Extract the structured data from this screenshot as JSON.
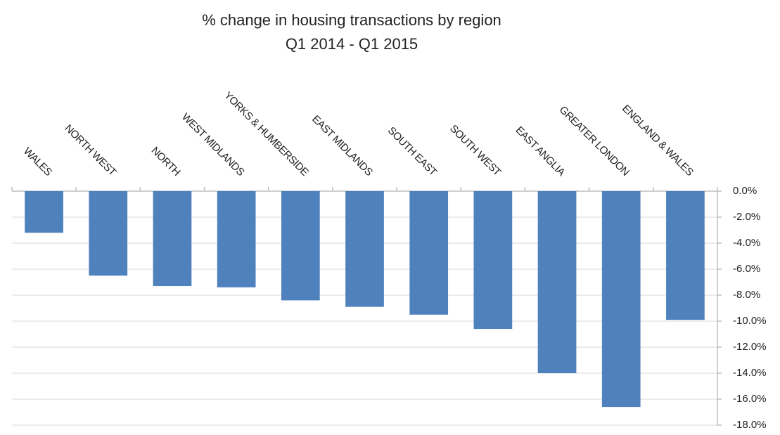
{
  "chart_data": {
    "type": "bar",
    "title": "% change in housing transactions by region",
    "subtitle": "Q1 2014 - Q1 2015",
    "categories": [
      "WALES",
      "NORTH WEST",
      "NORTH",
      "WEST MIDLANDS",
      "YORKS & HUMBERSIDE",
      "EAST MIDLANDS",
      "SOUTH EAST",
      "SOUTH WEST",
      "EAST ANGLIA",
      "GREATER LONDON",
      "ENGLAND & WALES"
    ],
    "values": [
      -3.2,
      -6.5,
      -7.3,
      -7.4,
      -8.4,
      -8.9,
      -9.5,
      -10.6,
      -14.0,
      -16.6,
      -9.9
    ],
    "color": "#4f81bd",
    "ylim": [
      -18,
      0
    ],
    "yticks": [
      {
        "value": 0,
        "label": "0.0%"
      },
      {
        "value": -2,
        "label": "-2.0%"
      },
      {
        "value": -4,
        "label": "-4.0%"
      },
      {
        "value": -6,
        "label": "-6.0%"
      },
      {
        "value": -8,
        "label": "-8.0%"
      },
      {
        "value": -10,
        "label": "-10.0%"
      },
      {
        "value": -12,
        "label": "-12.0%"
      },
      {
        "value": -14,
        "label": "-14.0%"
      },
      {
        "value": -16,
        "label": "-16.0%"
      },
      {
        "value": -18,
        "label": "-18.0%"
      }
    ],
    "grid": true
  }
}
